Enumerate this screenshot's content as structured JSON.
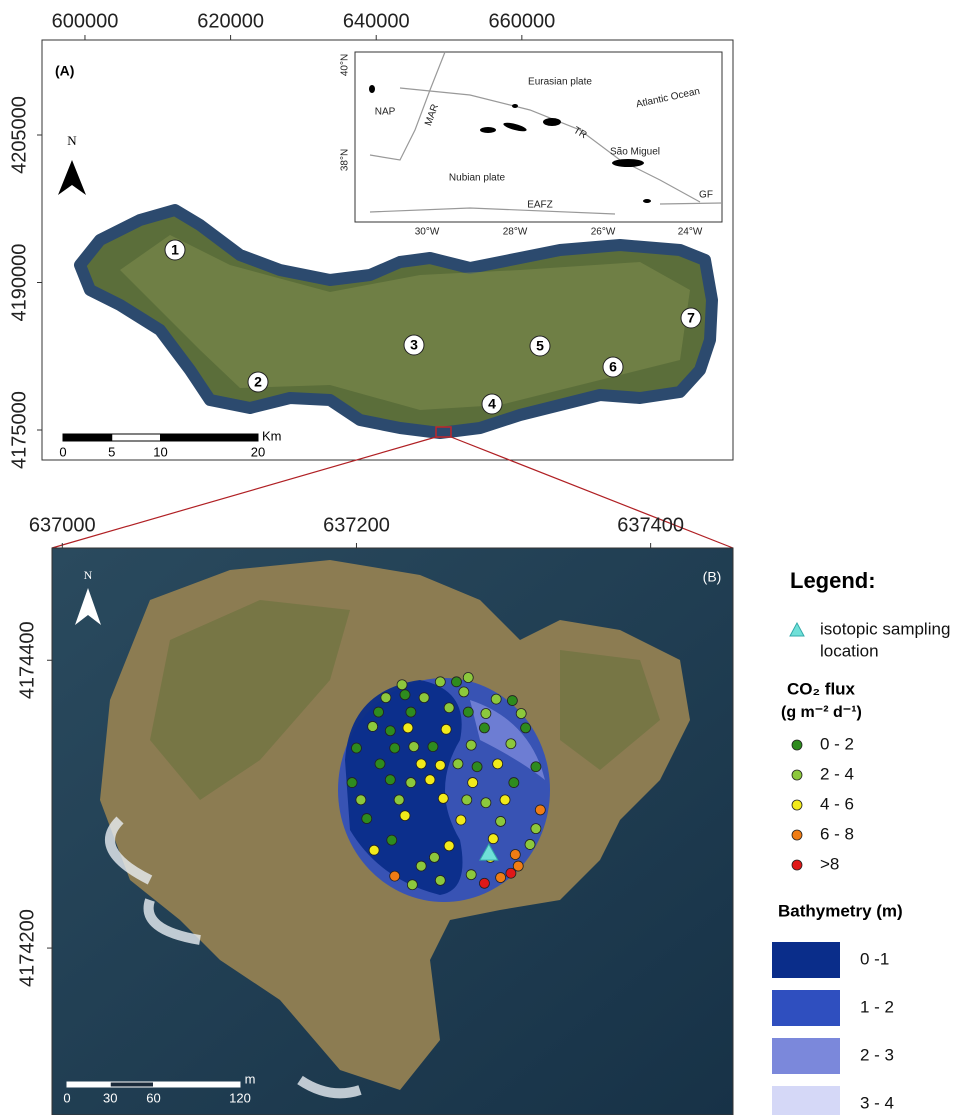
{
  "panel_a": {
    "label": "(A)",
    "xlim": [
      594100,
      689000
    ],
    "ylim": [
      4171950,
      4214660
    ],
    "xticks": [
      600000,
      620000,
      640000,
      660000
    ],
    "yticks": [
      4175000,
      4190000,
      4205000
    ],
    "north": "N",
    "scale_bar": {
      "unit": "Km",
      "ticks": [
        0,
        5,
        10,
        20
      ]
    },
    "sites": [
      "1",
      "2",
      "3",
      "4",
      "5",
      "6",
      "7"
    ],
    "inset": {
      "lat_labels": [
        "40°N",
        "38°N"
      ],
      "lon_labels": [
        "30°W",
        "28°W",
        "26°W",
        "24°W"
      ],
      "labels": [
        "Eurasian plate",
        "Atlantic Ocean",
        "NAP",
        "MAR",
        "TR",
        "São Miguel",
        "Nubian plate",
        "EAFZ",
        "GF"
      ]
    }
  },
  "panel_b": {
    "label": "(B)",
    "xlim": [
      636993,
      637456
    ],
    "ylim": [
      4174084,
      4174478
    ],
    "xticks": [
      637000,
      637200,
      637400
    ],
    "yticks": [
      4174200,
      4174400
    ],
    "north": "N",
    "scale_bar": {
      "unit": "m",
      "ticks": [
        0,
        30,
        60,
        120
      ]
    },
    "isotopic_site": [
      637290,
      4174266
    ],
    "flux_classes": [
      {
        "label": "0 - 2",
        "color": "#2e8b1e",
        "points": [
          [
            637306,
            4174372
          ],
          [
            637215,
            4174364
          ],
          [
            637237,
            4174364
          ],
          [
            637287,
            4174353
          ],
          [
            637315,
            4174353
          ],
          [
            637200,
            4174339
          ],
          [
            637226,
            4174339
          ],
          [
            637252,
            4174340
          ],
          [
            637216,
            4174328
          ],
          [
            637282,
            4174326
          ],
          [
            637322,
            4174326
          ],
          [
            637197,
            4174315
          ],
          [
            637223,
            4174317
          ],
          [
            637307,
            4174315
          ],
          [
            637207,
            4174290
          ],
          [
            637224,
            4174275
          ],
          [
            637268,
            4174385
          ],
          [
            637233,
            4174376
          ],
          [
            637276,
            4174364
          ],
          [
            637223,
            4174351
          ]
        ]
      },
      {
        "label": "2 - 4",
        "color": "#8cc83c",
        "points": [
          [
            637231,
            4174383
          ],
          [
            637257,
            4174385
          ],
          [
            637276,
            4174388
          ],
          [
            637220,
            4174374
          ],
          [
            637246,
            4174374
          ],
          [
            637273,
            4174378
          ],
          [
            637295,
            4174373
          ],
          [
            637263,
            4174367
          ],
          [
            637288,
            4174363
          ],
          [
            637312,
            4174363
          ],
          [
            637211,
            4174354
          ],
          [
            637278,
            4174341
          ],
          [
            637305,
            4174342
          ],
          [
            637203,
            4174303
          ],
          [
            637229,
            4174303
          ],
          [
            637288,
            4174301
          ],
          [
            637298,
            4174288
          ],
          [
            637322,
            4174283
          ],
          [
            637318,
            4174272
          ],
          [
            637253,
            4174263
          ],
          [
            637244,
            4174257
          ],
          [
            637278,
            4174251
          ],
          [
            637238,
            4174244
          ],
          [
            637257,
            4174247
          ],
          [
            637239,
            4174340
          ],
          [
            637269,
            4174328
          ],
          [
            637237,
            4174315
          ],
          [
            637275,
            4174303
          ]
        ]
      },
      {
        "label": "4 - 6",
        "color": "#f2ea1a",
        "points": [
          [
            637235,
            4174353
          ],
          [
            637261,
            4174352
          ],
          [
            637244,
            4174328
          ],
          [
            637257,
            4174327
          ],
          [
            637296,
            4174328
          ],
          [
            637250,
            4174317
          ],
          [
            637279,
            4174315
          ],
          [
            637259,
            4174304
          ],
          [
            637301,
            4174303
          ],
          [
            637233,
            4174292
          ],
          [
            637271,
            4174289
          ],
          [
            637263,
            4174271
          ],
          [
            637293,
            4174276
          ],
          [
            637212,
            4174268
          ],
          [
            637291,
            4174263
          ]
        ]
      },
      {
        "label": "6 - 8",
        "color": "#f07c14",
        "points": [
          [
            637325,
            4174296
          ],
          [
            637308,
            4174265
          ],
          [
            637310,
            4174257
          ],
          [
            637226,
            4174250
          ],
          [
            637298,
            4174249
          ]
        ]
      },
      {
        "label": ">8",
        "color": "#e01818",
        "points": [
          [
            637287,
            4174245
          ],
          [
            637305,
            4174252
          ]
        ]
      }
    ]
  },
  "legend": {
    "title": "Legend:",
    "isotopic": [
      "isotopic sampling",
      "location"
    ],
    "flux_title": "CO₂ flux",
    "flux_units": "(g m⁻² d⁻¹)",
    "bathymetry_title": "Bathymetry (m)",
    "bathymetry": [
      {
        "label": "0 -1",
        "color": "#0a2d8a"
      },
      {
        "label": "1 - 2",
        "color": "#2f4fbf"
      },
      {
        "label": "2 - 3",
        "color": "#7b88db"
      },
      {
        "label": "3 - 4",
        "color": "#d5d8f7"
      }
    ]
  }
}
